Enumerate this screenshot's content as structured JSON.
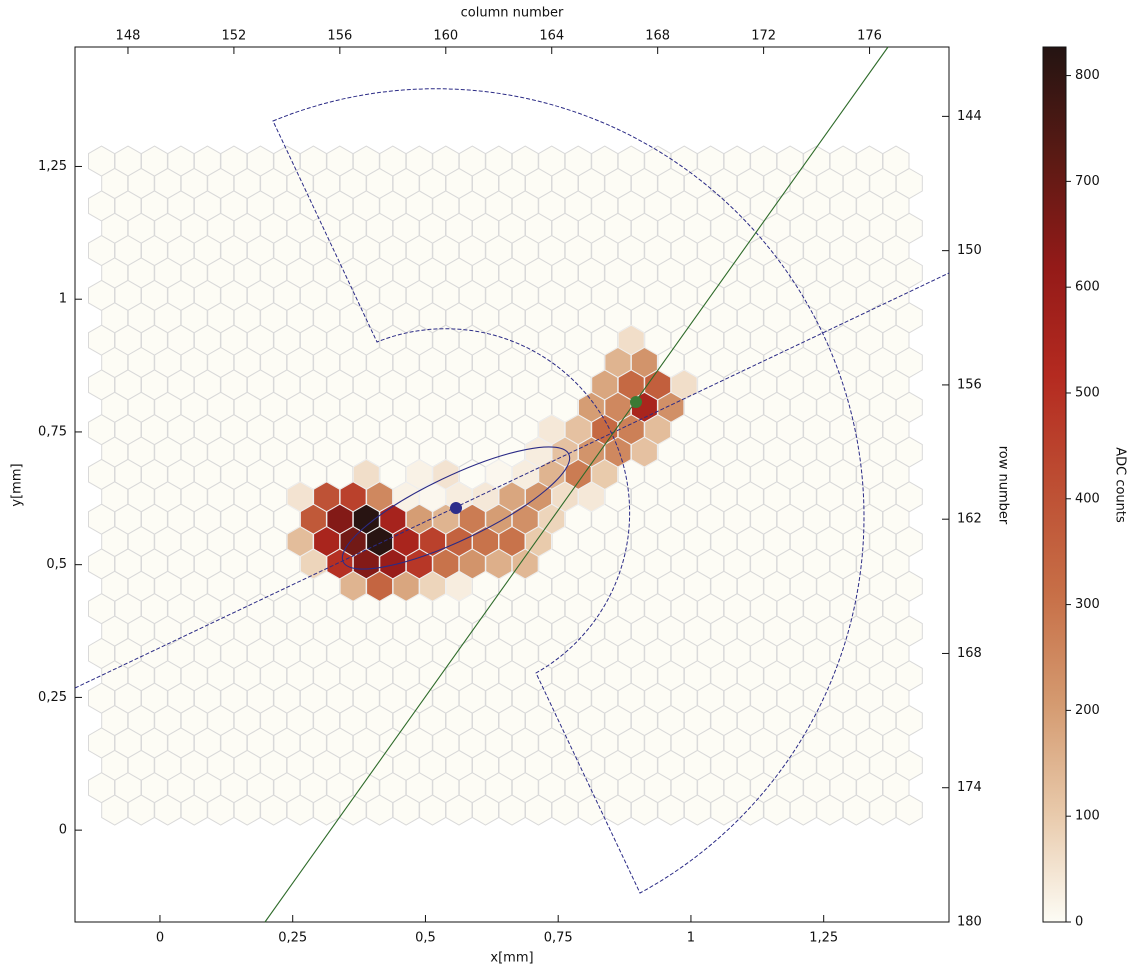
{
  "chart_data": {
    "type": "hexbin",
    "xlabel": "x[mm]",
    "ylabel": "y[mm]",
    "x2label": "column number",
    "y2label": "row number",
    "colorbar_label": "ADC counts",
    "xlim": [
      -0.16,
      1.486
    ],
    "ylim": [
      -0.173,
      1.475
    ],
    "xticks": [
      0,
      {
        "value": 0.25,
        "label": "0,25"
      },
      {
        "value": 0.5,
        "label": "0,5"
      },
      {
        "value": 0.75,
        "label": "0,75"
      },
      1,
      {
        "value": 1.25,
        "label": "1,25"
      }
    ],
    "yticks": [
      0,
      {
        "value": 0.25,
        "label": "0,25"
      },
      {
        "value": 0.5,
        "label": "0,5"
      },
      {
        "value": 0.75,
        "label": "0,75"
      },
      1,
      {
        "value": 1.25,
        "label": "1,25"
      }
    ],
    "x2lim": [
      146.0,
      179.0
    ],
    "x2ticks": [
      148,
      152,
      156,
      160,
      164,
      168,
      172,
      176
    ],
    "y2lim": [
      180,
      140.9
    ],
    "y2ticks": [
      144,
      150,
      156,
      162,
      168,
      174,
      180
    ],
    "clim": [
      0,
      827
    ],
    "cticks": [
      0,
      100,
      200,
      300,
      400,
      500,
      600,
      700,
      800
    ],
    "colormap": [
      "#fdfcf5",
      "#e8c9aa",
      "#d49a70",
      "#c76f47",
      "#bd4e33",
      "#b42a20",
      "#931a18",
      "#5a1a14",
      "#241412"
    ],
    "cells": {
      "col": [
        167,
        166,
        167,
        166,
        167,
        168,
        169,
        165,
        166,
        167,
        168,
        164,
        165,
        166,
        167,
        168,
        163,
        164,
        165,
        166,
        167,
        157,
        159,
        160,
        162,
        163,
        164,
        165,
        166,
        154,
        155,
        156,
        157,
        158,
        159,
        160,
        161,
        162,
        163,
        164,
        165,
        155,
        156,
        157,
        158,
        159,
        160,
        161,
        162,
        163,
        164,
        154,
        155,
        156,
        157,
        158,
        159,
        160,
        161,
        162,
        163,
        155,
        156,
        157,
        158,
        159,
        160,
        161,
        162,
        163,
        156,
        157,
        158,
        159,
        160
      ],
      "row": [
        154,
        155,
        155,
        156,
        156,
        156,
        156,
        157,
        157,
        157,
        157,
        158,
        158,
        158,
        158,
        158,
        159,
        159,
        159,
        159,
        159,
        160,
        160,
        160,
        160,
        160,
        160,
        160,
        160,
        161,
        161,
        161,
        161,
        161,
        161,
        161,
        161,
        161,
        161,
        161,
        161,
        162,
        162,
        162,
        162,
        162,
        162,
        162,
        162,
        162,
        162,
        163,
        163,
        163,
        163,
        163,
        163,
        163,
        163,
        163,
        163,
        164,
        164,
        164,
        164,
        164,
        164,
        164,
        164,
        164,
        165,
        165,
        165,
        165,
        165
      ],
      "values": [
        60,
        150,
        220,
        180,
        330,
        360,
        60,
        200,
        250,
        550,
        230,
        40,
        120,
        330,
        270,
        130,
        30,
        120,
        220,
        250,
        120,
        60,
        20,
        50,
        10,
        30,
        150,
        280,
        100,
        50,
        400,
        450,
        250,
        20,
        10,
        30,
        40,
        180,
        220,
        60,
        40,
        380,
        650,
        820,
        560,
        200,
        150,
        280,
        200,
        230,
        80,
        130,
        550,
        680,
        820,
        550,
        450,
        350,
        300,
        300,
        100,
        80,
        500,
        650,
        600,
        480,
        300,
        220,
        160,
        140,
        150,
        340,
        180,
        80,
        30
      ]
    }
  }
}
